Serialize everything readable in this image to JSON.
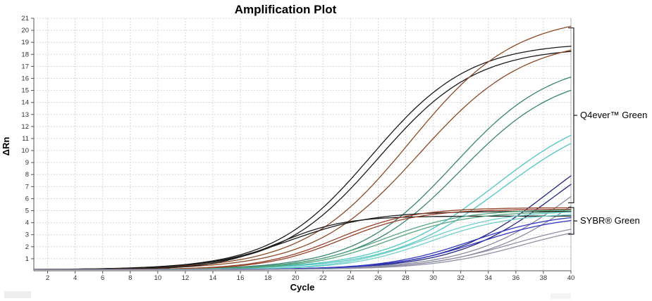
{
  "chart_data": {
    "type": "line",
    "title": "Amplification Plot",
    "xlabel": "Cycle",
    "ylabel": "ΔRn",
    "xlim": [
      1,
      40
    ],
    "ylim": [
      0,
      21
    ],
    "x_ticks": [
      2,
      4,
      6,
      8,
      10,
      12,
      14,
      16,
      18,
      20,
      22,
      24,
      26,
      28,
      30,
      32,
      34,
      36,
      38,
      40
    ],
    "y_ticks": [
      1,
      2,
      3,
      4,
      5,
      6,
      7,
      8,
      9,
      10,
      11,
      12,
      13,
      14,
      15,
      16,
      17,
      18,
      19,
      20,
      21
    ],
    "grid": "dotted",
    "legend_position": "right-brackets",
    "curve_model": "logistic: dRn(cycle) = baseline + plateau / (1 + exp(-slope * (cycle - midpoint)))",
    "groups": [
      {
        "label": "Q4ever™ Green",
        "bracket": {
          "v_top": 20.2,
          "v_bottom": 5.65
        },
        "series": [
          {
            "name": "q4ever-black-rep1",
            "color": "#1b1b1b",
            "baseline": 0.1,
            "plateau": 18.9,
            "slope": 0.28,
            "midpoint": 25.5,
            "end_value": 18.7
          },
          {
            "name": "q4ever-black-rep2",
            "color": "#1b1b1b",
            "baseline": 0.1,
            "plateau": 18.5,
            "slope": 0.28,
            "midpoint": 26.0,
            "end_value": 18.2
          },
          {
            "name": "q4ever-brown-rep1",
            "color": "#8c4a26",
            "baseline": 0.1,
            "plateau": 21.2,
            "slope": 0.26,
            "midpoint": 28.3,
            "end_value": 20.3
          },
          {
            "name": "q4ever-brown-rep2",
            "color": "#8c4a26",
            "baseline": 0.1,
            "plateau": 19.3,
            "slope": 0.26,
            "midpoint": 29.0,
            "end_value": 18.3
          },
          {
            "name": "q4ever-teal-rep1",
            "color": "#3a8571",
            "baseline": 0.1,
            "plateau": 17.5,
            "slope": 0.28,
            "midpoint": 31.5,
            "end_value": 16.1
          },
          {
            "name": "q4ever-teal-rep2",
            "color": "#3a8571",
            "baseline": 0.1,
            "plateau": 16.5,
            "slope": 0.28,
            "midpoint": 32.0,
            "end_value": 15.0
          },
          {
            "name": "q4ever-cyan-rep1",
            "color": "#52c6c3",
            "baseline": 0.1,
            "plateau": 14.0,
            "slope": 0.25,
            "midpoint": 34.5,
            "end_value": 11.3
          },
          {
            "name": "q4ever-cyan-rep2",
            "color": "#52c6c3",
            "baseline": 0.1,
            "plateau": 13.5,
            "slope": 0.25,
            "midpoint": 35.0,
            "end_value": 10.6
          },
          {
            "name": "q4ever-navy-rep1",
            "color": "#26267f",
            "baseline": 0.1,
            "plateau": 13.0,
            "slope": 0.27,
            "midpoint": 38.5,
            "end_value": 7.9
          },
          {
            "name": "q4ever-navy-rep2",
            "color": "#26267f",
            "baseline": 0.1,
            "plateau": 12.5,
            "slope": 0.27,
            "midpoint": 39.0,
            "end_value": 7.2
          },
          {
            "name": "q4ever-gray-rep1",
            "color": "#8a8aa0",
            "baseline": 0.1,
            "plateau": 13.0,
            "slope": 0.26,
            "midpoint": 40.5,
            "end_value": 6.2
          },
          {
            "name": "q4ever-gray-rep2",
            "color": "#8a8aa0",
            "baseline": 0.1,
            "plateau": 12.5,
            "slope": 0.26,
            "midpoint": 41.2,
            "end_value": 5.4
          }
        ]
      },
      {
        "label": "SYBR® Green",
        "bracket": {
          "v_top": 5.26,
          "v_bottom": 3.04
        },
        "series": [
          {
            "name": "sybr-black-rep1",
            "color": "#1b1b1b",
            "baseline": 0.1,
            "plateau": 4.45,
            "slope": 0.42,
            "midpoint": 18.8,
            "end_value": 4.55
          },
          {
            "name": "sybr-black-rep2",
            "color": "#1b1b1b",
            "baseline": 0.1,
            "plateau": 4.85,
            "slope": 0.33,
            "midpoint": 19.6,
            "end_value": 4.95
          },
          {
            "name": "sybr-brown-rep1",
            "color": "#96412a",
            "baseline": 0.1,
            "plateau": 5.15,
            "slope": 0.36,
            "midpoint": 23.0,
            "end_value": 5.24
          },
          {
            "name": "sybr-brown-rep2",
            "color": "#96412a",
            "baseline": 0.1,
            "plateau": 5.02,
            "slope": 0.36,
            "midpoint": 23.4,
            "end_value": 5.1
          },
          {
            "name": "sybr-green-rep1",
            "color": "#55a581",
            "baseline": 0.1,
            "plateau": 5.0,
            "slope": 0.34,
            "midpoint": 26.3,
            "end_value": 5.05
          },
          {
            "name": "sybr-green-rep2",
            "color": "#55a581",
            "baseline": 0.1,
            "plateau": 4.85,
            "slope": 0.34,
            "midpoint": 26.8,
            "end_value": 4.9
          },
          {
            "name": "sybr-cyan-rep1",
            "color": "#6fd0cb",
            "baseline": 0.1,
            "plateau": 4.9,
            "slope": 0.34,
            "midpoint": 29.3,
            "end_value": 4.87
          },
          {
            "name": "sybr-cyan-rep2",
            "color": "#6fd0cb",
            "baseline": 0.1,
            "plateau": 4.7,
            "slope": 0.34,
            "midpoint": 29.8,
            "end_value": 4.65
          },
          {
            "name": "sybr-blue-rep1",
            "color": "#3136c0",
            "baseline": 0.1,
            "plateau": 4.75,
            "slope": 0.32,
            "midpoint": 32.8,
            "end_value": 4.4
          },
          {
            "name": "sybr-blue-rep2",
            "color": "#3136c0",
            "baseline": 0.1,
            "plateau": 4.55,
            "slope": 0.32,
            "midpoint": 33.3,
            "end_value": 4.2
          },
          {
            "name": "sybr-gray-rep1",
            "color": "#9090a6",
            "baseline": 0.1,
            "plateau": 4.3,
            "slope": 0.3,
            "midpoint": 35.8,
            "end_value": 3.45
          },
          {
            "name": "sybr-gray-rep2",
            "color": "#9090a6",
            "baseline": 0.1,
            "plateau": 4.1,
            "slope": 0.3,
            "midpoint": 36.5,
            "end_value": 3.1
          }
        ]
      }
    ]
  }
}
